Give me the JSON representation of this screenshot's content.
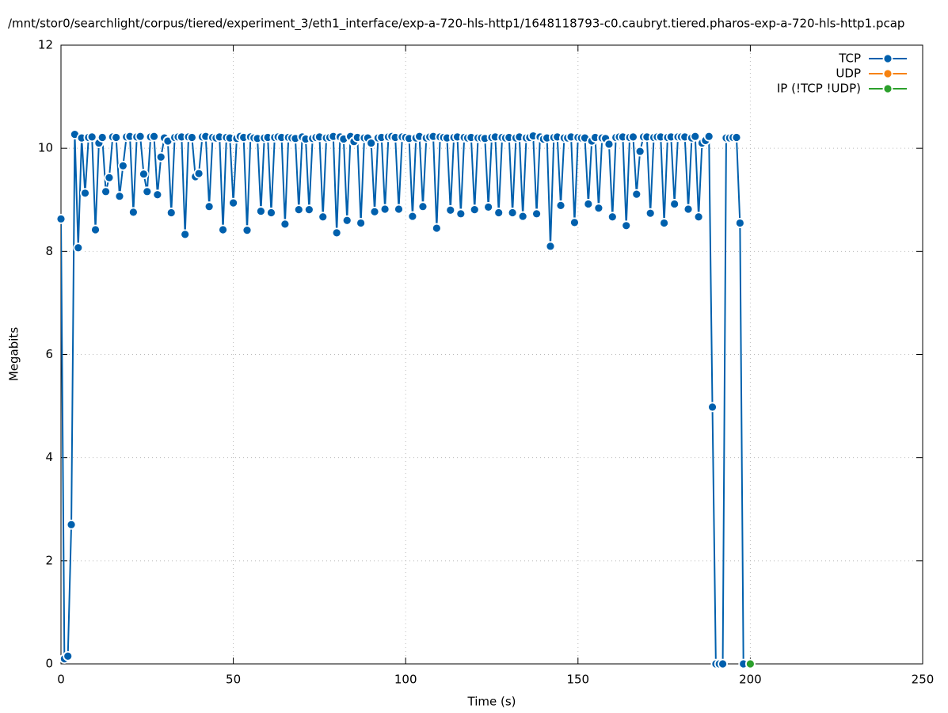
{
  "chart_data": {
    "type": "line",
    "title": "/mnt/stor0/searchlight/corpus/tiered/experiment_3/eth1_interface/exp-a-720-hls-http1/1648118793-c0.caubryt.tiered.pharos-exp-a-720-hls-http1.pcap",
    "xlabel": "Time (s)",
    "ylabel": "Megabits",
    "xlim": [
      0,
      250
    ],
    "xticks": [
      0,
      50,
      100,
      150,
      200,
      250
    ],
    "ylim": [
      0,
      12
    ],
    "yticks": [
      0,
      2,
      4,
      6,
      8,
      10,
      12
    ],
    "grid": true,
    "legend": "top right",
    "series": [
      {
        "name": "TCP",
        "color": "#0060ad",
        "x": [
          0,
          1,
          2,
          3,
          4,
          5,
          6,
          7,
          8,
          9,
          10,
          11,
          12,
          13,
          14,
          15,
          16,
          17,
          18,
          19,
          20,
          21,
          22,
          23,
          24,
          25,
          26,
          27,
          28,
          29,
          30,
          31,
          32,
          33,
          34,
          35,
          36,
          37,
          38,
          39,
          40,
          41,
          42,
          43,
          44,
          45,
          46,
          47,
          48,
          49,
          50,
          51,
          52,
          53,
          54,
          55,
          56,
          57,
          58,
          59,
          60,
          61,
          62,
          63,
          64,
          65,
          66,
          67,
          68,
          69,
          70,
          71,
          72,
          73,
          74,
          75,
          76,
          77,
          78,
          79,
          80,
          81,
          82,
          83,
          84,
          85,
          86,
          87,
          88,
          89,
          90,
          91,
          92,
          93,
          94,
          95,
          96,
          97,
          98,
          99,
          100,
          101,
          102,
          103,
          104,
          105,
          106,
          107,
          108,
          109,
          110,
          111,
          112,
          113,
          114,
          115,
          116,
          117,
          118,
          119,
          120,
          121,
          122,
          123,
          124,
          125,
          126,
          127,
          128,
          129,
          130,
          131,
          132,
          133,
          134,
          135,
          136,
          137,
          138,
          139,
          140,
          141,
          142,
          143,
          144,
          145,
          146,
          147,
          148,
          149,
          150,
          151,
          152,
          153,
          154,
          155,
          156,
          157,
          158,
          159,
          160,
          161,
          162,
          163,
          164,
          165,
          166,
          167,
          168,
          169,
          170,
          171,
          172,
          173,
          174,
          175,
          176,
          177,
          178,
          179,
          180,
          181,
          182,
          183,
          184,
          185,
          186,
          187,
          188,
          189,
          190,
          191,
          192,
          193,
          194,
          195,
          196,
          197,
          198
        ],
        "values": [
          8.63,
          0.1,
          0.15,
          2.7,
          10.27,
          8.07,
          10.2,
          9.13,
          10.21,
          10.22,
          8.42,
          10.1,
          10.21,
          9.16,
          9.43,
          10.22,
          10.21,
          9.07,
          9.66,
          10.22,
          10.23,
          8.76,
          10.22,
          10.23,
          9.5,
          9.16,
          10.22,
          10.23,
          9.1,
          9.83,
          10.2,
          10.14,
          8.75,
          10.21,
          10.22,
          10.22,
          8.33,
          10.22,
          10.21,
          9.45,
          9.51,
          10.22,
          10.23,
          8.87,
          10.21,
          10.2,
          10.22,
          8.42,
          10.21,
          10.2,
          8.94,
          10.19,
          10.23,
          10.21,
          8.41,
          10.22,
          10.2,
          10.19,
          8.78,
          10.2,
          10.21,
          8.75,
          10.21,
          10.22,
          10.21,
          8.53,
          10.21,
          10.2,
          10.19,
          8.81,
          10.22,
          10.18,
          8.81,
          10.19,
          10.21,
          10.22,
          8.67,
          10.2,
          10.21,
          10.23,
          8.36,
          10.22,
          10.18,
          8.6,
          10.23,
          10.13,
          10.21,
          8.55,
          10.2,
          10.2,
          10.1,
          8.77,
          10.2,
          10.21,
          8.82,
          10.22,
          10.23,
          10.21,
          8.82,
          10.22,
          10.21,
          10.19,
          8.68,
          10.2,
          10.23,
          8.87,
          10.2,
          10.22,
          10.23,
          8.45,
          10.22,
          10.21,
          10.2,
          8.8,
          10.21,
          10.22,
          8.73,
          10.21,
          10.2,
          10.21,
          8.81,
          10.2,
          10.2,
          10.19,
          8.86,
          10.21,
          10.22,
          8.75,
          10.21,
          10.2,
          10.21,
          8.75,
          10.2,
          10.22,
          8.68,
          10.2,
          10.21,
          10.24,
          8.73,
          10.22,
          10.18,
          10.2,
          8.1,
          10.21,
          10.22,
          8.89,
          10.2,
          10.2,
          10.22,
          8.56,
          10.21,
          10.2,
          10.2,
          8.92,
          10.14,
          10.21,
          8.84,
          10.2,
          10.19,
          10.08,
          8.67,
          10.21,
          10.22,
          10.22,
          8.5,
          10.21,
          10.22,
          9.11,
          9.94,
          10.22,
          10.22,
          8.74,
          10.21,
          10.22,
          10.22,
          8.55,
          10.21,
          10.22,
          8.92,
          10.22,
          10.22,
          10.22,
          8.82,
          10.2,
          10.23,
          8.67,
          10.1,
          10.15,
          10.23,
          4.98,
          0,
          0,
          0,
          10.2,
          10.2,
          10.21,
          10.21,
          8.55,
          0
        ]
      },
      {
        "name": "UDP",
        "color": "#f7820f",
        "x": [
          200
        ],
        "values": [
          0
        ]
      },
      {
        "name": "IP (!TCP  !UDP)",
        "color": "#2ca02c",
        "x": [
          200
        ],
        "values": [
          0
        ]
      }
    ]
  }
}
